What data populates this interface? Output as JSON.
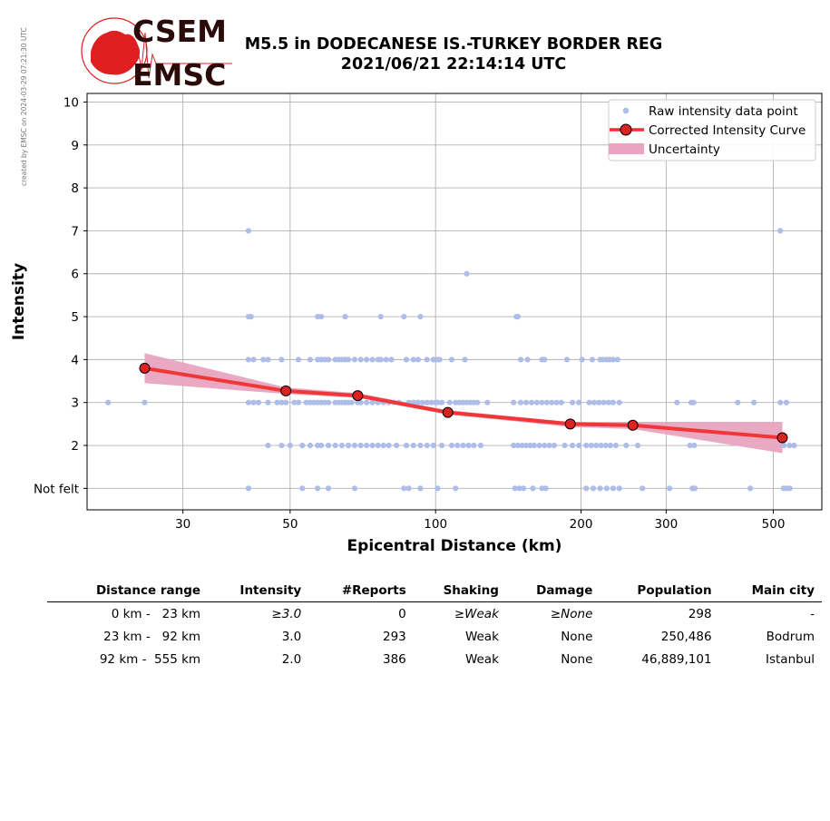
{
  "watermark": "created by EMSC on 2024-03-29 07:21:30 UTC",
  "logo": {
    "line1": "CSEM",
    "line2": "EMSC",
    "color": "#e02020"
  },
  "title_line1": "M5.5 in DODECANESE IS.-TURKEY BORDER REG",
  "title_line2": "2021/06/21 22:14:14 UTC",
  "chart_data": {
    "type": "scatter",
    "xlabel": "Epicentral Distance (km)",
    "ylabel": "Intensity",
    "x_scale": "log",
    "xlim": [
      19,
      630
    ],
    "ylim": [
      0.5,
      10.2
    ],
    "x_ticks": [
      30,
      50,
      100,
      200,
      300,
      500
    ],
    "x_tick_labels": [
      "30",
      "50",
      "100",
      "200",
      "300",
      "500"
    ],
    "y_ticks": [
      1,
      2,
      3,
      4,
      5,
      6,
      7,
      8,
      9,
      10
    ],
    "y_tick_labels": [
      "Not felt",
      "2",
      "3",
      "4",
      "5",
      "6",
      "7",
      "8",
      "9",
      "10"
    ],
    "grid": true,
    "legend_position": "top-right",
    "colors": {
      "raw": "#aebce8",
      "curve": "#f03030",
      "marker": "#dd2222",
      "uncertainty": "#e8a4c0"
    },
    "series": [
      {
        "name": "Raw intensity data point",
        "kind": "scatter",
        "points": [
          [
            21,
            3
          ],
          [
            25,
            3
          ],
          [
            41,
            7
          ],
          [
            41,
            5
          ],
          [
            41.5,
            5
          ],
          [
            57,
            5
          ],
          [
            58,
            5
          ],
          [
            65,
            5
          ],
          [
            77,
            5
          ],
          [
            86,
            5
          ],
          [
            93,
            5
          ],
          [
            147,
            5
          ],
          [
            148,
            5
          ],
          [
            116,
            6
          ],
          [
            517,
            7
          ],
          [
            41,
            4
          ],
          [
            42,
            4
          ],
          [
            44,
            4
          ],
          [
            45,
            4
          ],
          [
            48,
            4
          ],
          [
            52,
            4
          ],
          [
            55,
            4
          ],
          [
            57,
            4
          ],
          [
            58,
            4
          ],
          [
            59,
            4
          ],
          [
            60,
            4
          ],
          [
            62,
            4
          ],
          [
            63,
            4
          ],
          [
            64,
            4
          ],
          [
            65,
            4
          ],
          [
            66,
            4
          ],
          [
            68,
            4
          ],
          [
            70,
            4
          ],
          [
            72,
            4
          ],
          [
            74,
            4
          ],
          [
            76,
            4
          ],
          [
            77,
            4
          ],
          [
            79,
            4
          ],
          [
            81,
            4
          ],
          [
            87,
            4
          ],
          [
            90,
            4
          ],
          [
            92,
            4
          ],
          [
            96,
            4
          ],
          [
            99,
            4
          ],
          [
            101,
            4
          ],
          [
            102,
            4
          ],
          [
            108,
            4
          ],
          [
            115,
            4
          ],
          [
            150,
            4
          ],
          [
            155,
            4
          ],
          [
            166,
            4
          ],
          [
            168,
            4
          ],
          [
            187,
            4
          ],
          [
            201,
            4
          ],
          [
            211,
            4
          ],
          [
            219,
            4
          ],
          [
            222,
            4
          ],
          [
            226,
            4
          ],
          [
            229,
            4
          ],
          [
            233,
            4
          ],
          [
            238,
            4
          ],
          [
            41,
            3
          ],
          [
            42,
            3
          ],
          [
            43,
            3
          ],
          [
            45,
            3
          ],
          [
            47,
            3
          ],
          [
            48,
            3
          ],
          [
            49,
            3
          ],
          [
            51,
            3
          ],
          [
            52,
            3
          ],
          [
            54,
            3
          ],
          [
            55,
            3
          ],
          [
            56,
            3
          ],
          [
            57,
            3
          ],
          [
            58,
            3
          ],
          [
            59,
            3
          ],
          [
            60,
            3
          ],
          [
            62,
            3
          ],
          [
            63,
            3
          ],
          [
            64,
            3
          ],
          [
            65,
            3
          ],
          [
            66,
            3
          ],
          [
            67,
            3
          ],
          [
            69,
            3
          ],
          [
            70,
            3
          ],
          [
            72,
            3
          ],
          [
            74,
            3
          ],
          [
            76,
            3
          ],
          [
            78,
            3
          ],
          [
            80,
            3
          ],
          [
            82,
            3
          ],
          [
            84,
            3
          ],
          [
            88,
            3
          ],
          [
            90,
            3
          ],
          [
            92,
            3
          ],
          [
            94,
            3
          ],
          [
            96,
            3
          ],
          [
            98,
            3
          ],
          [
            100,
            3
          ],
          [
            101,
            3
          ],
          [
            103,
            3
          ],
          [
            107,
            3
          ],
          [
            110,
            3
          ],
          [
            112,
            3
          ],
          [
            114,
            3
          ],
          [
            116,
            3
          ],
          [
            118,
            3
          ],
          [
            120,
            3
          ],
          [
            122,
            3
          ],
          [
            128,
            3
          ],
          [
            145,
            3
          ],
          [
            150,
            3
          ],
          [
            154,
            3
          ],
          [
            158,
            3
          ],
          [
            162,
            3
          ],
          [
            166,
            3
          ],
          [
            170,
            3
          ],
          [
            174,
            3
          ],
          [
            178,
            3
          ],
          [
            182,
            3
          ],
          [
            192,
            3
          ],
          [
            198,
            3
          ],
          [
            208,
            3
          ],
          [
            213,
            3
          ],
          [
            218,
            3
          ],
          [
            223,
            3
          ],
          [
            228,
            3
          ],
          [
            233,
            3
          ],
          [
            240,
            3
          ],
          [
            316,
            3
          ],
          [
            338,
            3
          ],
          [
            342,
            3
          ],
          [
            422,
            3
          ],
          [
            456,
            3
          ],
          [
            517,
            3
          ],
          [
            532,
            3
          ],
          [
            45,
            2
          ],
          [
            48,
            2
          ],
          [
            50,
            2
          ],
          [
            53,
            2
          ],
          [
            55,
            2
          ],
          [
            57,
            2
          ],
          [
            58,
            2
          ],
          [
            60,
            2
          ],
          [
            62,
            2
          ],
          [
            64,
            2
          ],
          [
            66,
            2
          ],
          [
            68,
            2
          ],
          [
            70,
            2
          ],
          [
            72,
            2
          ],
          [
            74,
            2
          ],
          [
            76,
            2
          ],
          [
            78,
            2
          ],
          [
            80,
            2
          ],
          [
            83,
            2
          ],
          [
            87,
            2
          ],
          [
            90,
            2
          ],
          [
            93,
            2
          ],
          [
            96,
            2
          ],
          [
            99,
            2
          ],
          [
            103,
            2
          ],
          [
            108,
            2
          ],
          [
            111,
            2
          ],
          [
            114,
            2
          ],
          [
            117,
            2
          ],
          [
            120,
            2
          ],
          [
            124,
            2
          ],
          [
            145,
            2
          ],
          [
            148,
            2
          ],
          [
            151,
            2
          ],
          [
            154,
            2
          ],
          [
            157,
            2
          ],
          [
            160,
            2
          ],
          [
            164,
            2
          ],
          [
            168,
            2
          ],
          [
            172,
            2
          ],
          [
            176,
            2
          ],
          [
            185,
            2
          ],
          [
            192,
            2
          ],
          [
            198,
            2
          ],
          [
            205,
            2
          ],
          [
            210,
            2
          ],
          [
            215,
            2
          ],
          [
            220,
            2
          ],
          [
            225,
            2
          ],
          [
            230,
            2
          ],
          [
            236,
            2
          ],
          [
            248,
            2
          ],
          [
            262,
            2
          ],
          [
            336,
            2
          ],
          [
            343,
            2
          ],
          [
            526,
            2
          ],
          [
            540,
            2
          ],
          [
            552,
            2
          ],
          [
            41,
            1
          ],
          [
            53,
            1
          ],
          [
            57,
            1
          ],
          [
            60,
            1
          ],
          [
            68,
            1
          ],
          [
            86,
            1
          ],
          [
            88,
            1
          ],
          [
            93,
            1
          ],
          [
            101,
            1
          ],
          [
            110,
            1
          ],
          [
            146,
            1
          ],
          [
            149,
            1
          ],
          [
            152,
            1
          ],
          [
            159,
            1
          ],
          [
            166,
            1
          ],
          [
            169,
            1
          ],
          [
            205,
            1
          ],
          [
            212,
            1
          ],
          [
            219,
            1
          ],
          [
            226,
            1
          ],
          [
            233,
            1
          ],
          [
            240,
            1
          ],
          [
            268,
            1
          ],
          [
            305,
            1
          ],
          [
            340,
            1
          ],
          [
            344,
            1
          ],
          [
            448,
            1
          ],
          [
            525,
            1
          ],
          [
            533,
            1
          ],
          [
            541,
            1
          ]
        ]
      },
      {
        "name": "Corrected Intensity Curve",
        "kind": "line",
        "x": [
          25,
          49,
          69,
          106,
          190,
          256,
          522
        ],
        "y": [
          3.8,
          3.27,
          3.16,
          2.77,
          2.5,
          2.47,
          2.18
        ]
      },
      {
        "name": "Uncertainty",
        "kind": "band",
        "x": [
          25,
          49,
          69,
          106,
          190,
          256,
          522
        ],
        "lower": [
          3.45,
          3.2,
          3.11,
          2.72,
          2.43,
          2.38,
          1.82
        ],
        "upper": [
          4.15,
          3.35,
          3.22,
          2.82,
          2.55,
          2.55,
          2.55
        ]
      }
    ]
  },
  "table": {
    "headers": [
      "Distance range",
      "Intensity",
      "#Reports",
      "Shaking",
      "Damage",
      "Population",
      "Main city"
    ],
    "rows": [
      [
        "0 km -   23 km",
        "≥3.0",
        "0",
        "≥Weak",
        "≥None",
        "298",
        "-"
      ],
      [
        "23 km -   92 km",
        "3.0",
        "293",
        "Weak",
        "None",
        "250,486",
        "Bodrum"
      ],
      [
        "92 km -  555 km",
        "2.0",
        "386",
        "Weak",
        "None",
        "46,889,101",
        "Istanbul"
      ]
    ]
  }
}
